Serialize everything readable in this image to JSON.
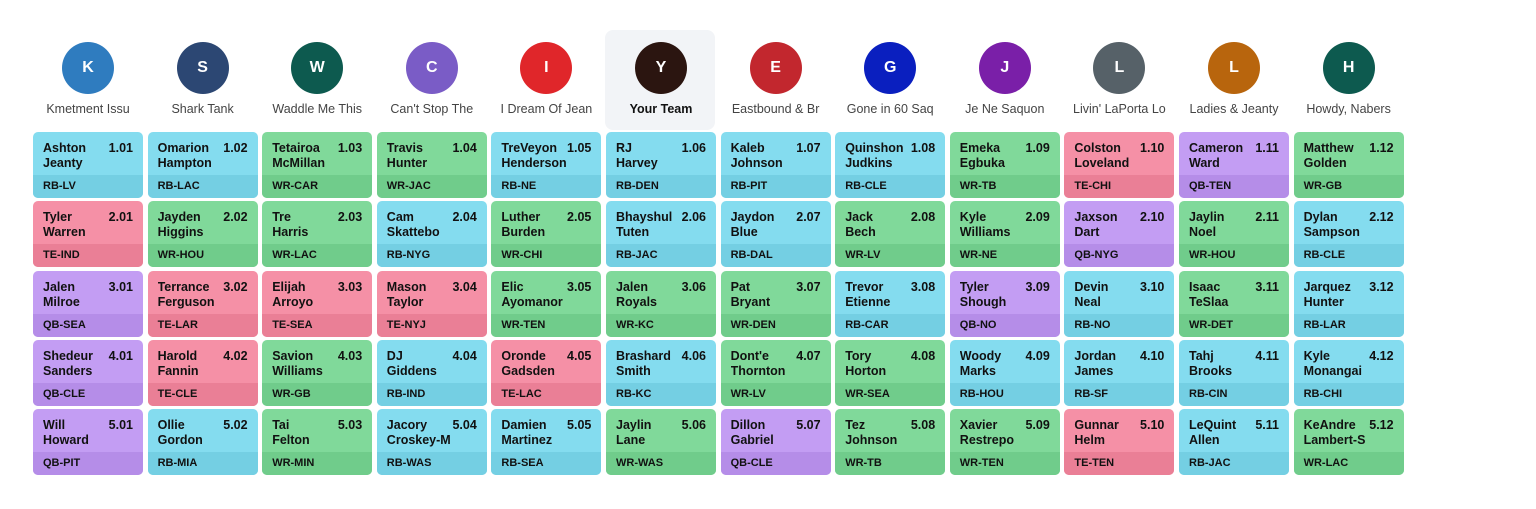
{
  "teams": [
    {
      "initial": "K",
      "name": "Kmetment Issu",
      "color": "#2f7cbf"
    },
    {
      "initial": "S",
      "name": "Shark Tank",
      "color": "#2c4773"
    },
    {
      "initial": "W",
      "name": "Waddle Me This",
      "color": "#0d5a4f"
    },
    {
      "initial": "C",
      "name": "Can't Stop The",
      "color": "#7a5cc6"
    },
    {
      "initial": "I",
      "name": "I Dream Of Jean",
      "color": "#e0262a"
    },
    {
      "initial": "Y",
      "name": "Your Team",
      "color": "#2b1510"
    },
    {
      "initial": "E",
      "name": "Eastbound & Br",
      "color": "#c2272e"
    },
    {
      "initial": "G",
      "name": "Gone in 60 Saq",
      "color": "#0a1fbf"
    },
    {
      "initial": "J",
      "name": "Je Ne Saquon",
      "color": "#7a1fa8"
    },
    {
      "initial": "L",
      "name": "Livin' LaPorta Lo",
      "color": "#566168"
    },
    {
      "initial": "L",
      "name": "Ladies & Jeanty",
      "color": "#b8650d"
    },
    {
      "initial": "H",
      "name": "Howdy, Nabers",
      "color": "#0d5a4f"
    }
  ],
  "rounds": [
    [
      {
        "first": "Ashton",
        "last": "Jeanty",
        "pick": "1.01",
        "pos": "RB-LV"
      },
      {
        "first": "Omarion",
        "last": "Hampton",
        "pick": "1.02",
        "pos": "RB-LAC"
      },
      {
        "first": "Tetairoa",
        "last": "McMillan",
        "pick": "1.03",
        "pos": "WR-CAR"
      },
      {
        "first": "Travis",
        "last": "Hunter",
        "pick": "1.04",
        "pos": "WR-JAC"
      },
      {
        "first": "TreVeyon",
        "last": "Henderson",
        "pick": "1.05",
        "pos": "RB-NE"
      },
      {
        "first": "RJ",
        "last": "Harvey",
        "pick": "1.06",
        "pos": "RB-DEN"
      },
      {
        "first": "Kaleb",
        "last": "Johnson",
        "pick": "1.07",
        "pos": "RB-PIT"
      },
      {
        "first": "Quinshon",
        "last": "Judkins",
        "pick": "1.08",
        "pos": "RB-CLE"
      },
      {
        "first": "Emeka",
        "last": "Egbuka",
        "pick": "1.09",
        "pos": "WR-TB"
      },
      {
        "first": "Colston",
        "last": "Loveland",
        "pick": "1.10",
        "pos": "TE-CHI"
      },
      {
        "first": "Cameron",
        "last": "Ward",
        "pick": "1.11",
        "pos": "QB-TEN"
      },
      {
        "first": "Matthew",
        "last": "Golden",
        "pick": "1.12",
        "pos": "WR-GB"
      }
    ],
    [
      {
        "first": "Tyler",
        "last": "Warren",
        "pick": "2.01",
        "pos": "TE-IND"
      },
      {
        "first": "Jayden",
        "last": "Higgins",
        "pick": "2.02",
        "pos": "WR-HOU"
      },
      {
        "first": "Tre",
        "last": "Harris",
        "pick": "2.03",
        "pos": "WR-LAC"
      },
      {
        "first": "Cam",
        "last": "Skattebo",
        "pick": "2.04",
        "pos": "RB-NYG"
      },
      {
        "first": "Luther",
        "last": "Burden",
        "pick": "2.05",
        "pos": "WR-CHI"
      },
      {
        "first": "Bhayshul",
        "last": "Tuten",
        "pick": "2.06",
        "pos": "RB-JAC"
      },
      {
        "first": "Jaydon",
        "last": "Blue",
        "pick": "2.07",
        "pos": "RB-DAL"
      },
      {
        "first": "Jack",
        "last": "Bech",
        "pick": "2.08",
        "pos": "WR-LV"
      },
      {
        "first": "Kyle",
        "last": "Williams",
        "pick": "2.09",
        "pos": "WR-NE"
      },
      {
        "first": "Jaxson",
        "last": "Dart",
        "pick": "2.10",
        "pos": "QB-NYG"
      },
      {
        "first": "Jaylin",
        "last": "Noel",
        "pick": "2.11",
        "pos": "WR-HOU"
      },
      {
        "first": "Dylan",
        "last": "Sampson",
        "pick": "2.12",
        "pos": "RB-CLE"
      }
    ],
    [
      {
        "first": "Jalen",
        "last": "Milroe",
        "pick": "3.01",
        "pos": "QB-SEA"
      },
      {
        "first": "Terrance",
        "last": "Ferguson",
        "pick": "3.02",
        "pos": "TE-LAR"
      },
      {
        "first": "Elijah",
        "last": "Arroyo",
        "pick": "3.03",
        "pos": "TE-SEA"
      },
      {
        "first": "Mason",
        "last": "Taylor",
        "pick": "3.04",
        "pos": "TE-NYJ"
      },
      {
        "first": "Elic",
        "last": "Ayomanor",
        "pick": "3.05",
        "pos": "WR-TEN"
      },
      {
        "first": "Jalen",
        "last": "Royals",
        "pick": "3.06",
        "pos": "WR-KC"
      },
      {
        "first": "Pat",
        "last": "Bryant",
        "pick": "3.07",
        "pos": "WR-DEN"
      },
      {
        "first": "Trevor",
        "last": "Etienne",
        "pick": "3.08",
        "pos": "RB-CAR"
      },
      {
        "first": "Tyler",
        "last": "Shough",
        "pick": "3.09",
        "pos": "QB-NO"
      },
      {
        "first": "Devin",
        "last": "Neal",
        "pick": "3.10",
        "pos": "RB-NO"
      },
      {
        "first": "Isaac",
        "last": "TeSlaa",
        "pick": "3.11",
        "pos": "WR-DET"
      },
      {
        "first": "Jarquez",
        "last": "Hunter",
        "pick": "3.12",
        "pos": "RB-LAR"
      }
    ],
    [
      {
        "first": "Shedeur",
        "last": "Sanders",
        "pick": "4.01",
        "pos": "QB-CLE"
      },
      {
        "first": "Harold",
        "last": "Fannin",
        "pick": "4.02",
        "pos": "TE-CLE"
      },
      {
        "first": "Savion",
        "last": "Williams",
        "pick": "4.03",
        "pos": "WR-GB"
      },
      {
        "first": "DJ",
        "last": "Giddens",
        "pick": "4.04",
        "pos": "RB-IND"
      },
      {
        "first": "Oronde",
        "last": "Gadsden",
        "pick": "4.05",
        "pos": "TE-LAC"
      },
      {
        "first": "Brashard",
        "last": "Smith",
        "pick": "4.06",
        "pos": "RB-KC"
      },
      {
        "first": "Dont'e",
        "last": "Thornton",
        "pick": "4.07",
        "pos": "WR-LV"
      },
      {
        "first": "Tory",
        "last": "Horton",
        "pick": "4.08",
        "pos": "WR-SEA"
      },
      {
        "first": "Woody",
        "last": "Marks",
        "pick": "4.09",
        "pos": "RB-HOU"
      },
      {
        "first": "Jordan",
        "last": "James",
        "pick": "4.10",
        "pos": "RB-SF"
      },
      {
        "first": "Tahj",
        "last": "Brooks",
        "pick": "4.11",
        "pos": "RB-CIN"
      },
      {
        "first": "Kyle",
        "last": "Monangai",
        "pick": "4.12",
        "pos": "RB-CHI"
      }
    ],
    [
      {
        "first": "Will",
        "last": "Howard",
        "pick": "5.01",
        "pos": "QB-PIT"
      },
      {
        "first": "Ollie",
        "last": "Gordon",
        "pick": "5.02",
        "pos": "RB-MIA"
      },
      {
        "first": "Tai",
        "last": "Felton",
        "pick": "5.03",
        "pos": "WR-MIN"
      },
      {
        "first": "Jacory",
        "last": "Croskey-M",
        "pick": "5.04",
        "pos": "RB-WAS"
      },
      {
        "first": "Damien",
        "last": "Martinez",
        "pick": "5.05",
        "pos": "RB-SEA"
      },
      {
        "first": "Jaylin",
        "last": "Lane",
        "pick": "5.06",
        "pos": "WR-WAS"
      },
      {
        "first": "Dillon",
        "last": "Gabriel",
        "pick": "5.07",
        "pos": "QB-CLE"
      },
      {
        "first": "Tez",
        "last": "Johnson",
        "pick": "5.08",
        "pos": "WR-TB"
      },
      {
        "first": "Xavier",
        "last": "Restrepo",
        "pick": "5.09",
        "pos": "WR-TEN"
      },
      {
        "first": "Gunnar",
        "last": "Helm",
        "pick": "5.10",
        "pos": "TE-TEN"
      },
      {
        "first": "LeQuint",
        "last": "Allen",
        "pick": "5.11",
        "pos": "RB-JAC"
      },
      {
        "first": "KeAndre",
        "last": "Lambert-S",
        "pick": "5.12",
        "pos": "WR-LAC"
      }
    ]
  ]
}
